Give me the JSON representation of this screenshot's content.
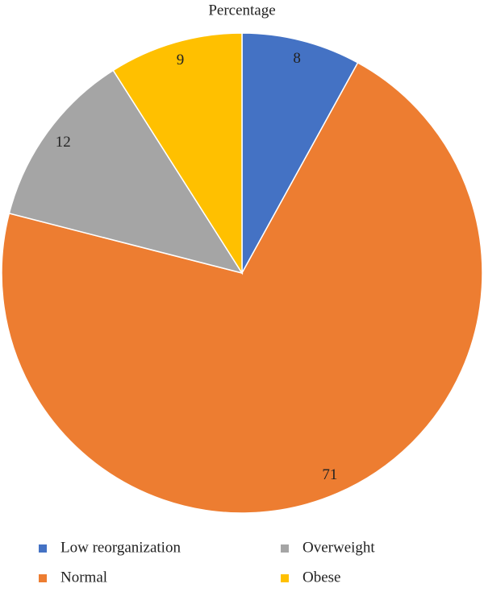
{
  "chart_data": {
    "type": "pie",
    "title": "Percentage",
    "categories": [
      "Low reorganization",
      "Normal",
      "Overweight",
      "Obese"
    ],
    "values": [
      8,
      71,
      12,
      9
    ],
    "colors": [
      "#4472c4",
      "#ed7d31",
      "#a5a5a5",
      "#ffc000"
    ],
    "legend": "bottom"
  }
}
